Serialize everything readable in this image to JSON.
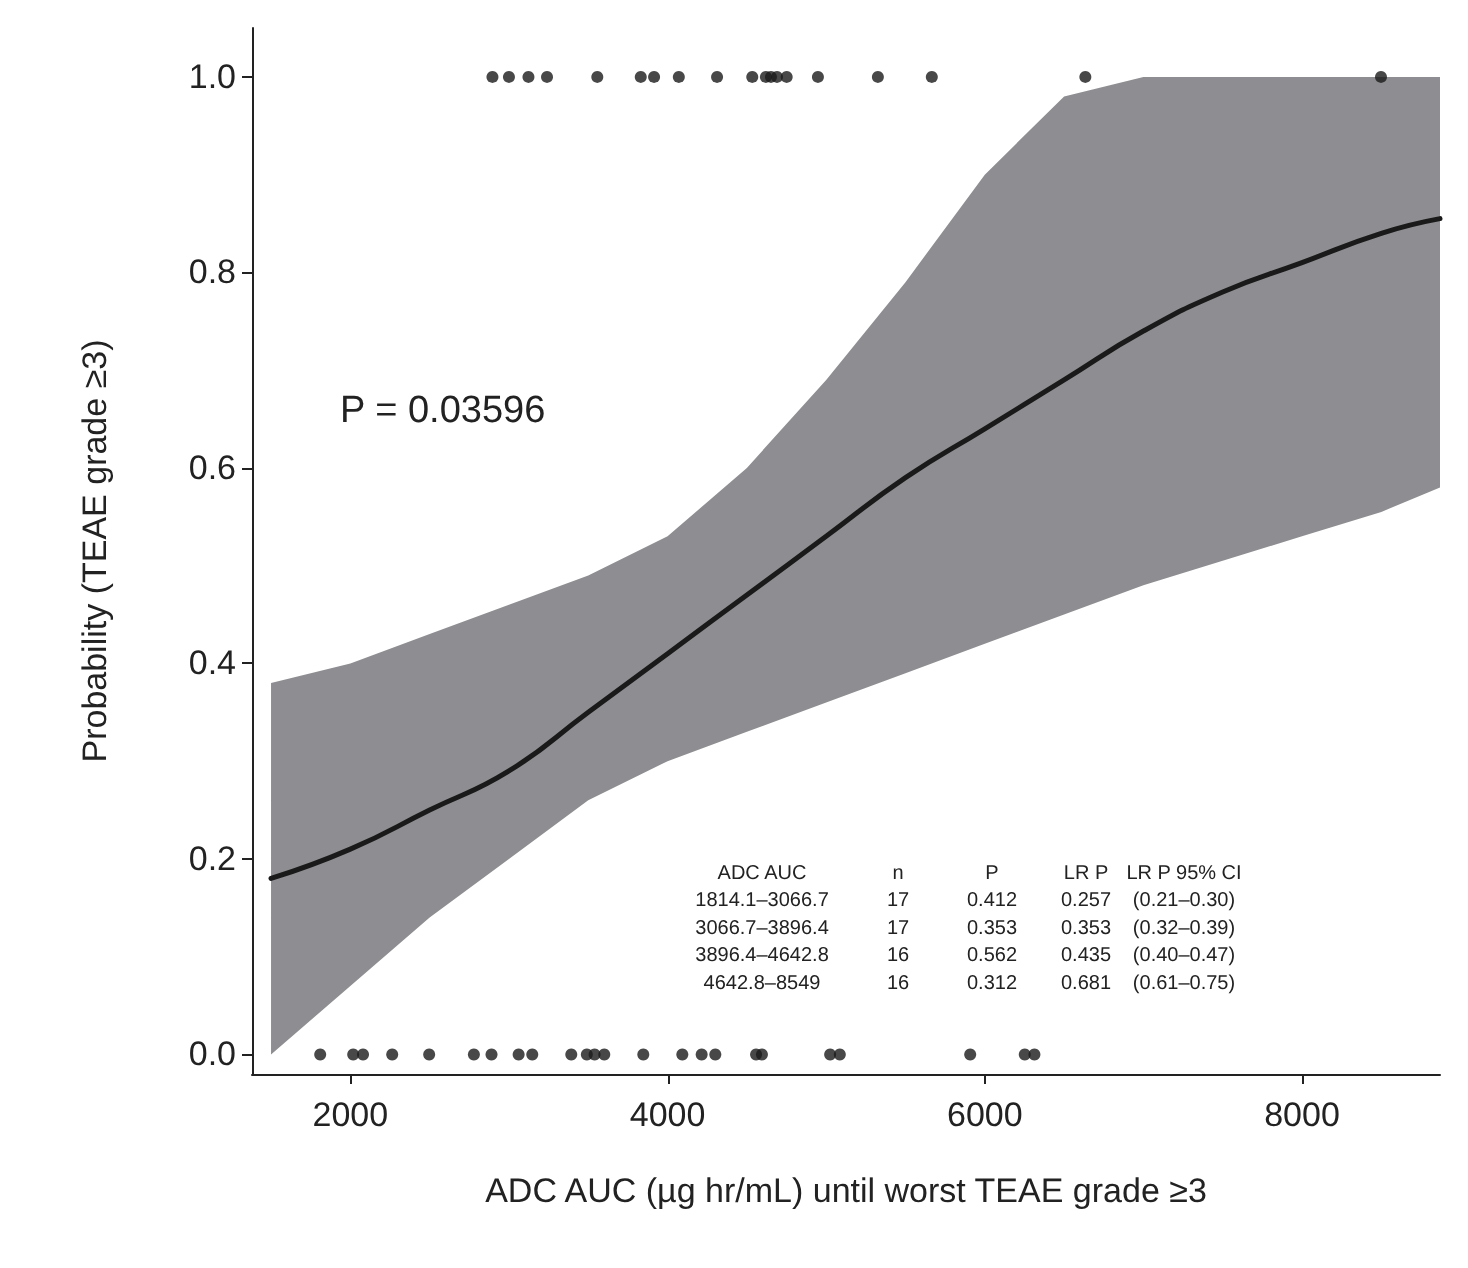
{
  "chart_data": {
    "type": "line",
    "xlabel": "ADC AUC (µg hr/mL) until worst TEAE grade ≥3",
    "ylabel": "Probability (TEAE grade ≥3)",
    "xlim": [
      1380,
      8870
    ],
    "xticks": [
      2000,
      4000,
      6000,
      8000
    ],
    "ylim": [
      -0.02,
      1.05
    ],
    "yticks": [
      {
        "value": 0,
        "label": "0.0"
      },
      0.2,
      0.4,
      0.6,
      0.8,
      {
        "value": 1,
        "label": "1.0"
      }
    ],
    "grid": false,
    "series": [
      {
        "color": "#1a1a1a",
        "x": [
          1500,
          2000,
          2500,
          3000,
          3500,
          4000,
          4500,
          5000,
          5500,
          6000,
          6500,
          7000,
          7500,
          8000,
          8500,
          8870
        ],
        "values": [
          0.18,
          0.21,
          0.25,
          0.29,
          0.35,
          0.41,
          0.47,
          0.53,
          0.59,
          0.64,
          0.69,
          0.74,
          0.78,
          0.81,
          0.84,
          0.855
        ],
        "lower": [
          0.0,
          0.07,
          0.14,
          0.2,
          0.26,
          0.3,
          0.33,
          0.36,
          0.39,
          0.42,
          0.45,
          0.48,
          0.505,
          0.53,
          0.555,
          0.58
        ],
        "upper": [
          0.38,
          0.4,
          0.43,
          0.46,
          0.49,
          0.53,
          0.6,
          0.69,
          0.79,
          0.9,
          0.98,
          1.0,
          1.0,
          1.0,
          1.0,
          1.0
        ]
      },
      {
        "type": "scatter",
        "color": "#1a1a1a",
        "marker": "circle",
        "x": [
          2896,
          3000,
          3123,
          3240,
          3557,
          3831,
          3915,
          4071,
          4312,
          4534,
          4620,
          4652,
          4690,
          4751,
          4948,
          5326,
          5666,
          6634,
          8498,
          1810,
          2018,
          2080,
          2264,
          2497,
          2779,
          2890,
          3061,
          3147,
          3393,
          3491,
          3540,
          3601,
          3847,
          4093,
          4215,
          4301,
          4558,
          4595,
          5025,
          5086,
          5908,
          6252,
          6313
        ],
        "values": [
          1,
          1,
          1,
          1,
          1,
          1,
          1,
          1,
          1,
          1,
          1,
          1,
          1,
          1,
          1,
          1,
          1,
          1,
          1,
          0,
          0,
          0,
          0,
          0,
          0,
          0,
          0,
          0,
          0,
          0,
          0,
          0,
          0,
          0,
          0,
          0,
          0,
          0,
          0,
          0,
          0,
          0,
          0
        ]
      }
    ],
    "annotations": [
      "P = 0.03596",
      "ADC AUC",
      "n",
      "P",
      "LR P",
      "LR P 95% CI",
      "1814.1–3066.7",
      "17",
      "0.412",
      "0.257",
      "(0.21–0.30)",
      "3066.7–3896.4",
      "17",
      "0.353",
      "0.353",
      "(0.32–0.39)",
      "3896.4–4642.8",
      "16",
      "0.562",
      "0.435",
      "(0.40–0.47)",
      "4642.8–8549",
      "16",
      "0.312",
      "0.681",
      "(0.61–0.75)"
    ]
  }
}
